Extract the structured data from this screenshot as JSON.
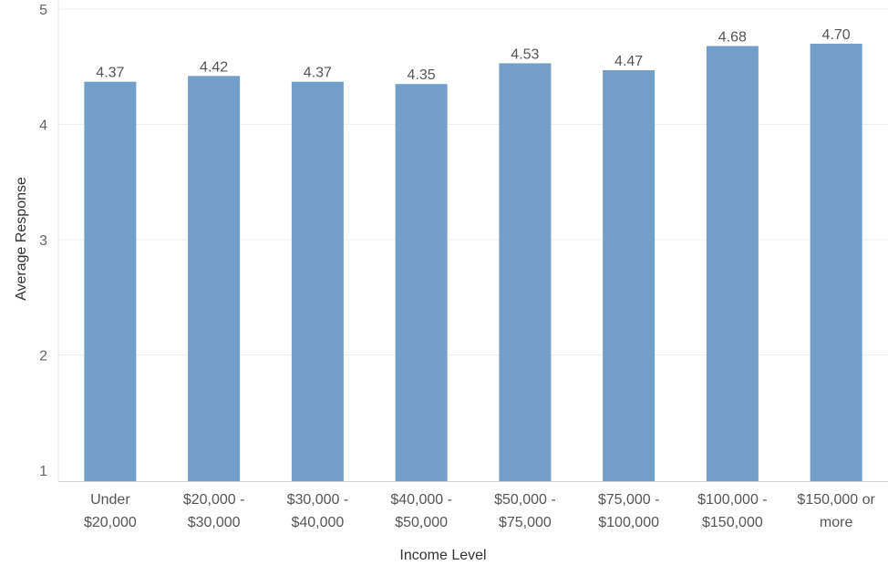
{
  "chart_data": {
    "type": "bar",
    "xlabel": "Income Level",
    "ylabel": "Average Response",
    "categories": [
      [
        "Under",
        "$20,000"
      ],
      [
        "$20,000 -",
        "$30,000"
      ],
      [
        "$30,000 -",
        "$40,000"
      ],
      [
        "$40,000 -",
        "$50,000"
      ],
      [
        "$50,000 -",
        "$75,000"
      ],
      [
        "$75,000 -",
        "$100,000"
      ],
      [
        "$100,000 -",
        "$150,000"
      ],
      [
        "$150,000 or",
        "more"
      ]
    ],
    "values": [
      4.37,
      4.42,
      4.37,
      4.35,
      4.53,
      4.47,
      4.68,
      4.7
    ],
    "value_labels": [
      "4.37",
      "4.42",
      "4.37",
      "4.35",
      "4.53",
      "4.47",
      "4.68",
      "4.70"
    ],
    "ylim": [
      1,
      5
    ],
    "yticks": [
      1,
      2,
      3,
      4,
      5
    ],
    "grid": true,
    "bar_color": "#729fc7",
    "grid_color": "#efefef"
  }
}
